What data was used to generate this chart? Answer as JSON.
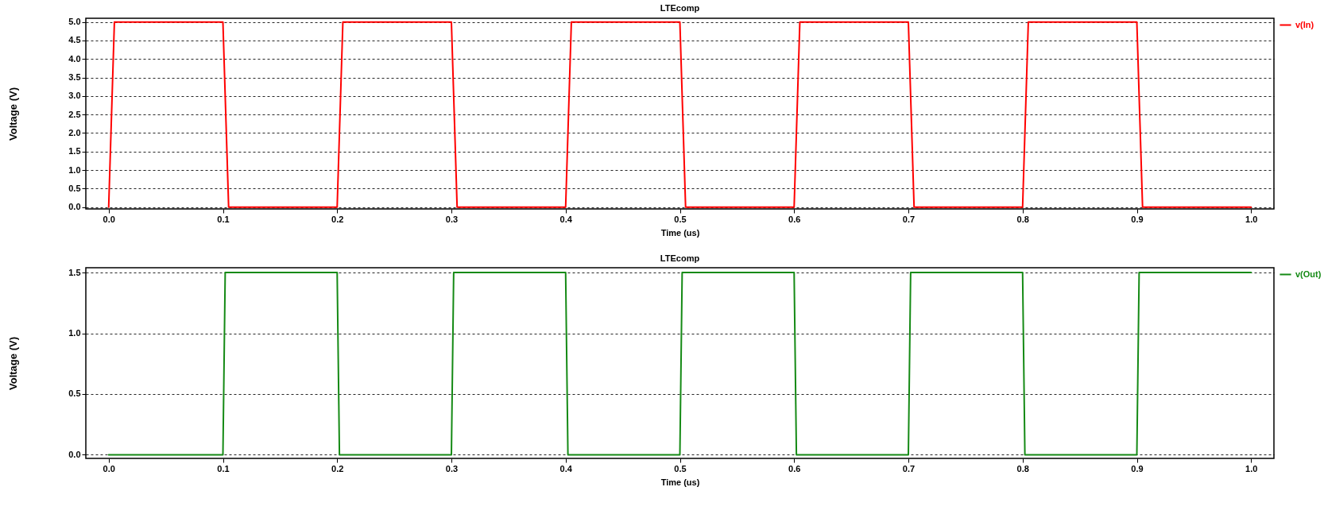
{
  "chart_data": [
    {
      "type": "line",
      "title": "LTEcomp",
      "xlabel": "Time (us)",
      "ylabel": "Voltage (V)",
      "x": [
        0,
        0.005,
        0.1,
        0.105,
        0.2,
        0.205,
        0.3,
        0.305,
        0.4,
        0.405,
        0.5,
        0.505,
        0.6,
        0.605,
        0.7,
        0.705,
        0.8,
        0.805,
        0.9,
        0.905,
        1.0
      ],
      "series": [
        {
          "name": "v(In)",
          "color": "#ff0000",
          "values": [
            0,
            5,
            5,
            0,
            0,
            5,
            5,
            0,
            0,
            5,
            5,
            0,
            0,
            5,
            5,
            0,
            0,
            5,
            5,
            0,
            0
          ]
        }
      ],
      "xlim": [
        -0.02,
        1.02
      ],
      "xticks": [
        {
          "value": 0,
          "label": "0.0"
        },
        {
          "value": 0.1,
          "label": "0.1"
        },
        {
          "value": 0.2,
          "label": "0.2"
        },
        {
          "value": 0.3,
          "label": "0.3"
        },
        {
          "value": 0.4,
          "label": "0.4"
        },
        {
          "value": 0.5,
          "label": "0.5"
        },
        {
          "value": 0.6,
          "label": "0.6"
        },
        {
          "value": 0.7,
          "label": "0.7"
        },
        {
          "value": 0.8,
          "label": "0.8"
        },
        {
          "value": 0.9,
          "label": "0.9"
        },
        {
          "value": 1,
          "label": "1.0"
        }
      ],
      "ylim": [
        -0.05,
        5.1
      ],
      "yticks": [
        {
          "value": 0,
          "label": "0.0"
        },
        {
          "value": 0.5,
          "label": "0.5"
        },
        {
          "value": 1,
          "label": "1.0"
        },
        {
          "value": 1.5,
          "label": "1.5"
        },
        {
          "value": 2,
          "label": "2.0"
        },
        {
          "value": 2.5,
          "label": "2.5"
        },
        {
          "value": 3,
          "label": "3.0"
        },
        {
          "value": 3.5,
          "label": "3.5"
        },
        {
          "value": 4,
          "label": "4.0"
        },
        {
          "value": 4.5,
          "label": "4.5"
        },
        {
          "value": 5,
          "label": "5.0"
        }
      ],
      "grid": "y",
      "legend": "top right"
    },
    {
      "type": "line",
      "title": "LTEcomp",
      "xlabel": "Time (us)",
      "ylabel": "Voltage (V)",
      "x": [
        0,
        0.1,
        0.102,
        0.2,
        0.202,
        0.3,
        0.302,
        0.4,
        0.402,
        0.5,
        0.502,
        0.6,
        0.602,
        0.7,
        0.702,
        0.8,
        0.802,
        0.9,
        0.902,
        1.0
      ],
      "series": [
        {
          "name": "v(Out)",
          "color": "#158a15",
          "values": [
            0,
            0,
            1.5,
            1.5,
            0,
            0,
            1.5,
            1.5,
            0,
            0,
            1.5,
            1.5,
            0,
            0,
            1.5,
            1.5,
            0,
            0,
            1.5,
            1.5
          ]
        }
      ],
      "xlim": [
        -0.02,
        1.02
      ],
      "xticks": [
        {
          "value": 0,
          "label": "0.0"
        },
        {
          "value": 0.1,
          "label": "0.1"
        },
        {
          "value": 0.2,
          "label": "0.2"
        },
        {
          "value": 0.3,
          "label": "0.3"
        },
        {
          "value": 0.4,
          "label": "0.4"
        },
        {
          "value": 0.5,
          "label": "0.5"
        },
        {
          "value": 0.6,
          "label": "0.6"
        },
        {
          "value": 0.7,
          "label": "0.7"
        },
        {
          "value": 0.8,
          "label": "0.8"
        },
        {
          "value": 0.9,
          "label": "0.9"
        },
        {
          "value": 1,
          "label": "1.0"
        }
      ],
      "ylim": [
        -0.03,
        1.54
      ],
      "yticks": [
        {
          "value": 0,
          "label": "0.0"
        },
        {
          "value": 0.5,
          "label": "0.5"
        },
        {
          "value": 1,
          "label": "1.0"
        },
        {
          "value": 1.5,
          "label": "1.5"
        }
      ],
      "grid": "y",
      "legend": "top right"
    }
  ]
}
